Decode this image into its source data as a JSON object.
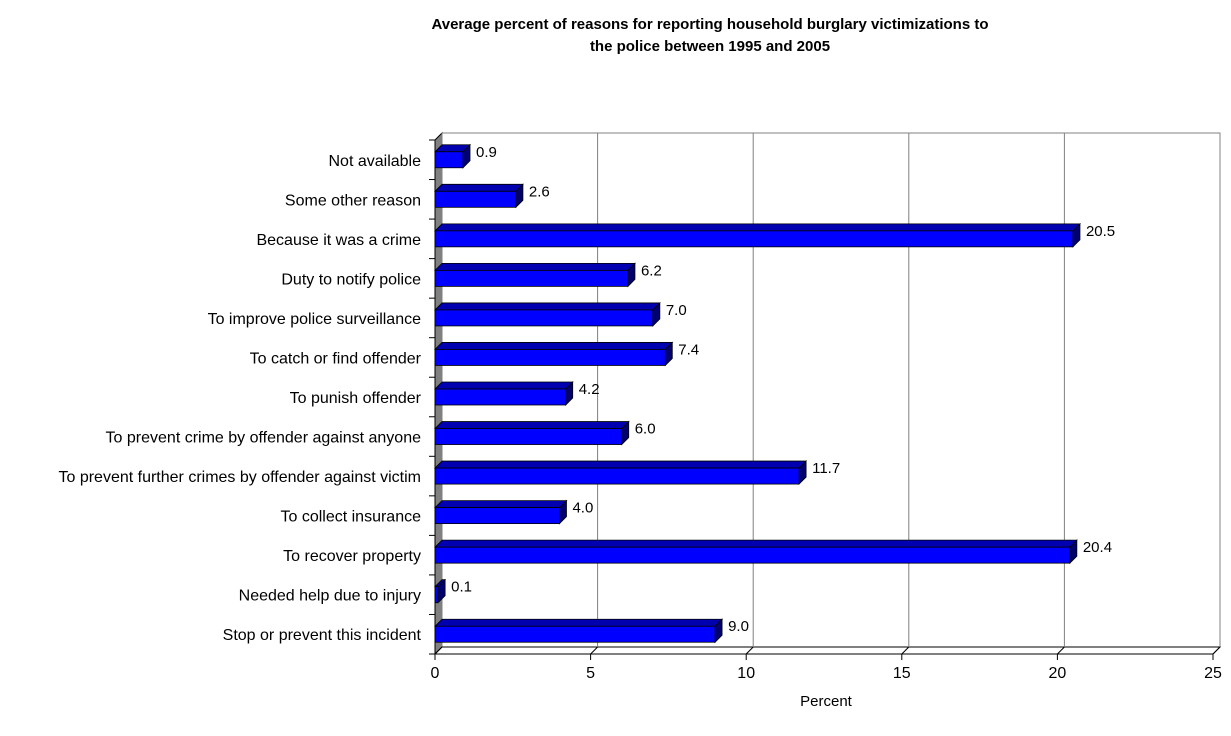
{
  "chart_data": {
    "type": "bar",
    "orientation": "horizontal",
    "title": "Average percent of reasons for reporting household burglary victimizations to the police between 1995 and 2005",
    "xlabel": "Percent",
    "ylabel": "",
    "xlim": [
      0,
      25
    ],
    "xticks": [
      0,
      5,
      10,
      15,
      20,
      25
    ],
    "grid": true,
    "legend": "none",
    "bar_color": "#0000FF",
    "categories": [
      "Not available",
      "Some other reason",
      "Because it was a crime",
      "Duty to notify police",
      "To improve police surveillance",
      "To catch or find offender",
      "To punish offender",
      "To prevent crime by offender against anyone",
      "To prevent further crimes by offender against victim",
      "To collect insurance",
      "To recover property",
      "Needed help due to injury",
      "Stop or prevent this incident"
    ],
    "values": [
      0.9,
      2.6,
      20.5,
      6.2,
      7.0,
      7.4,
      4.2,
      6.0,
      11.7,
      4.0,
      20.4,
      0.1,
      9.0
    ],
    "data_labels": [
      "0.9",
      "2.6",
      "20.5",
      "6.2",
      "7.0",
      "7.4",
      "4.2",
      "6.0",
      "11.7",
      "4.0",
      "20.4",
      "0.1",
      "9.0"
    ]
  }
}
